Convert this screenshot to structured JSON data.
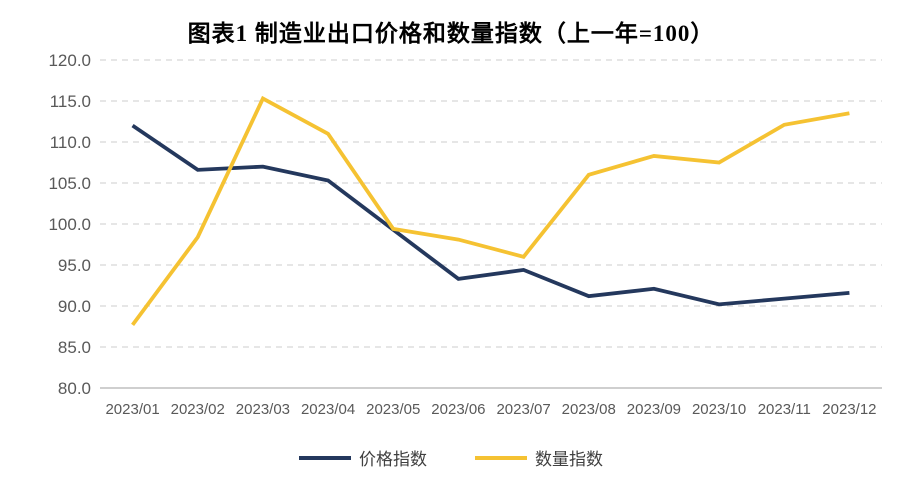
{
  "chart_data": {
    "type": "line",
    "title": "图表1 制造业出口价格和数量指数（上一年=100）",
    "categories": [
      "2023/01",
      "2023/02",
      "2023/03",
      "2023/04",
      "2023/05",
      "2023/06",
      "2023/07",
      "2023/08",
      "2023/09",
      "2023/10",
      "2023/11",
      "2023/12"
    ],
    "series": [
      {
        "name": "价格指数",
        "color": "#24385D",
        "values": [
          112.0,
          106.6,
          107.0,
          105.3,
          99.3,
          93.3,
          94.4,
          91.2,
          92.1,
          90.2,
          90.9,
          91.6
        ]
      },
      {
        "name": "数量指数",
        "color": "#F5C232",
        "values": [
          87.7,
          98.4,
          115.3,
          111.0,
          99.4,
          98.1,
          96.0,
          106.0,
          108.3,
          107.5,
          112.1,
          113.5
        ]
      }
    ],
    "ylim": [
      80,
      120
    ],
    "y_ticks": [
      80,
      85,
      90,
      95,
      100,
      105,
      110,
      115,
      120
    ],
    "y_tick_labels": [
      "80.0",
      "85.0",
      "90.0",
      "95.0",
      "100.0",
      "105.0",
      "110.0",
      "115.0",
      "120.0"
    ],
    "grid": "horizontal-dashed",
    "legend_position": "bottom"
  },
  "colors": {
    "background": "#FFFFFF",
    "grid": "#D6D6D6",
    "axis": "#BFBFBF",
    "tick_label": "#595959",
    "legend_text": "#404040",
    "title": "#000000",
    "price_line": "#24385D",
    "quantity_line": "#F5C232"
  }
}
